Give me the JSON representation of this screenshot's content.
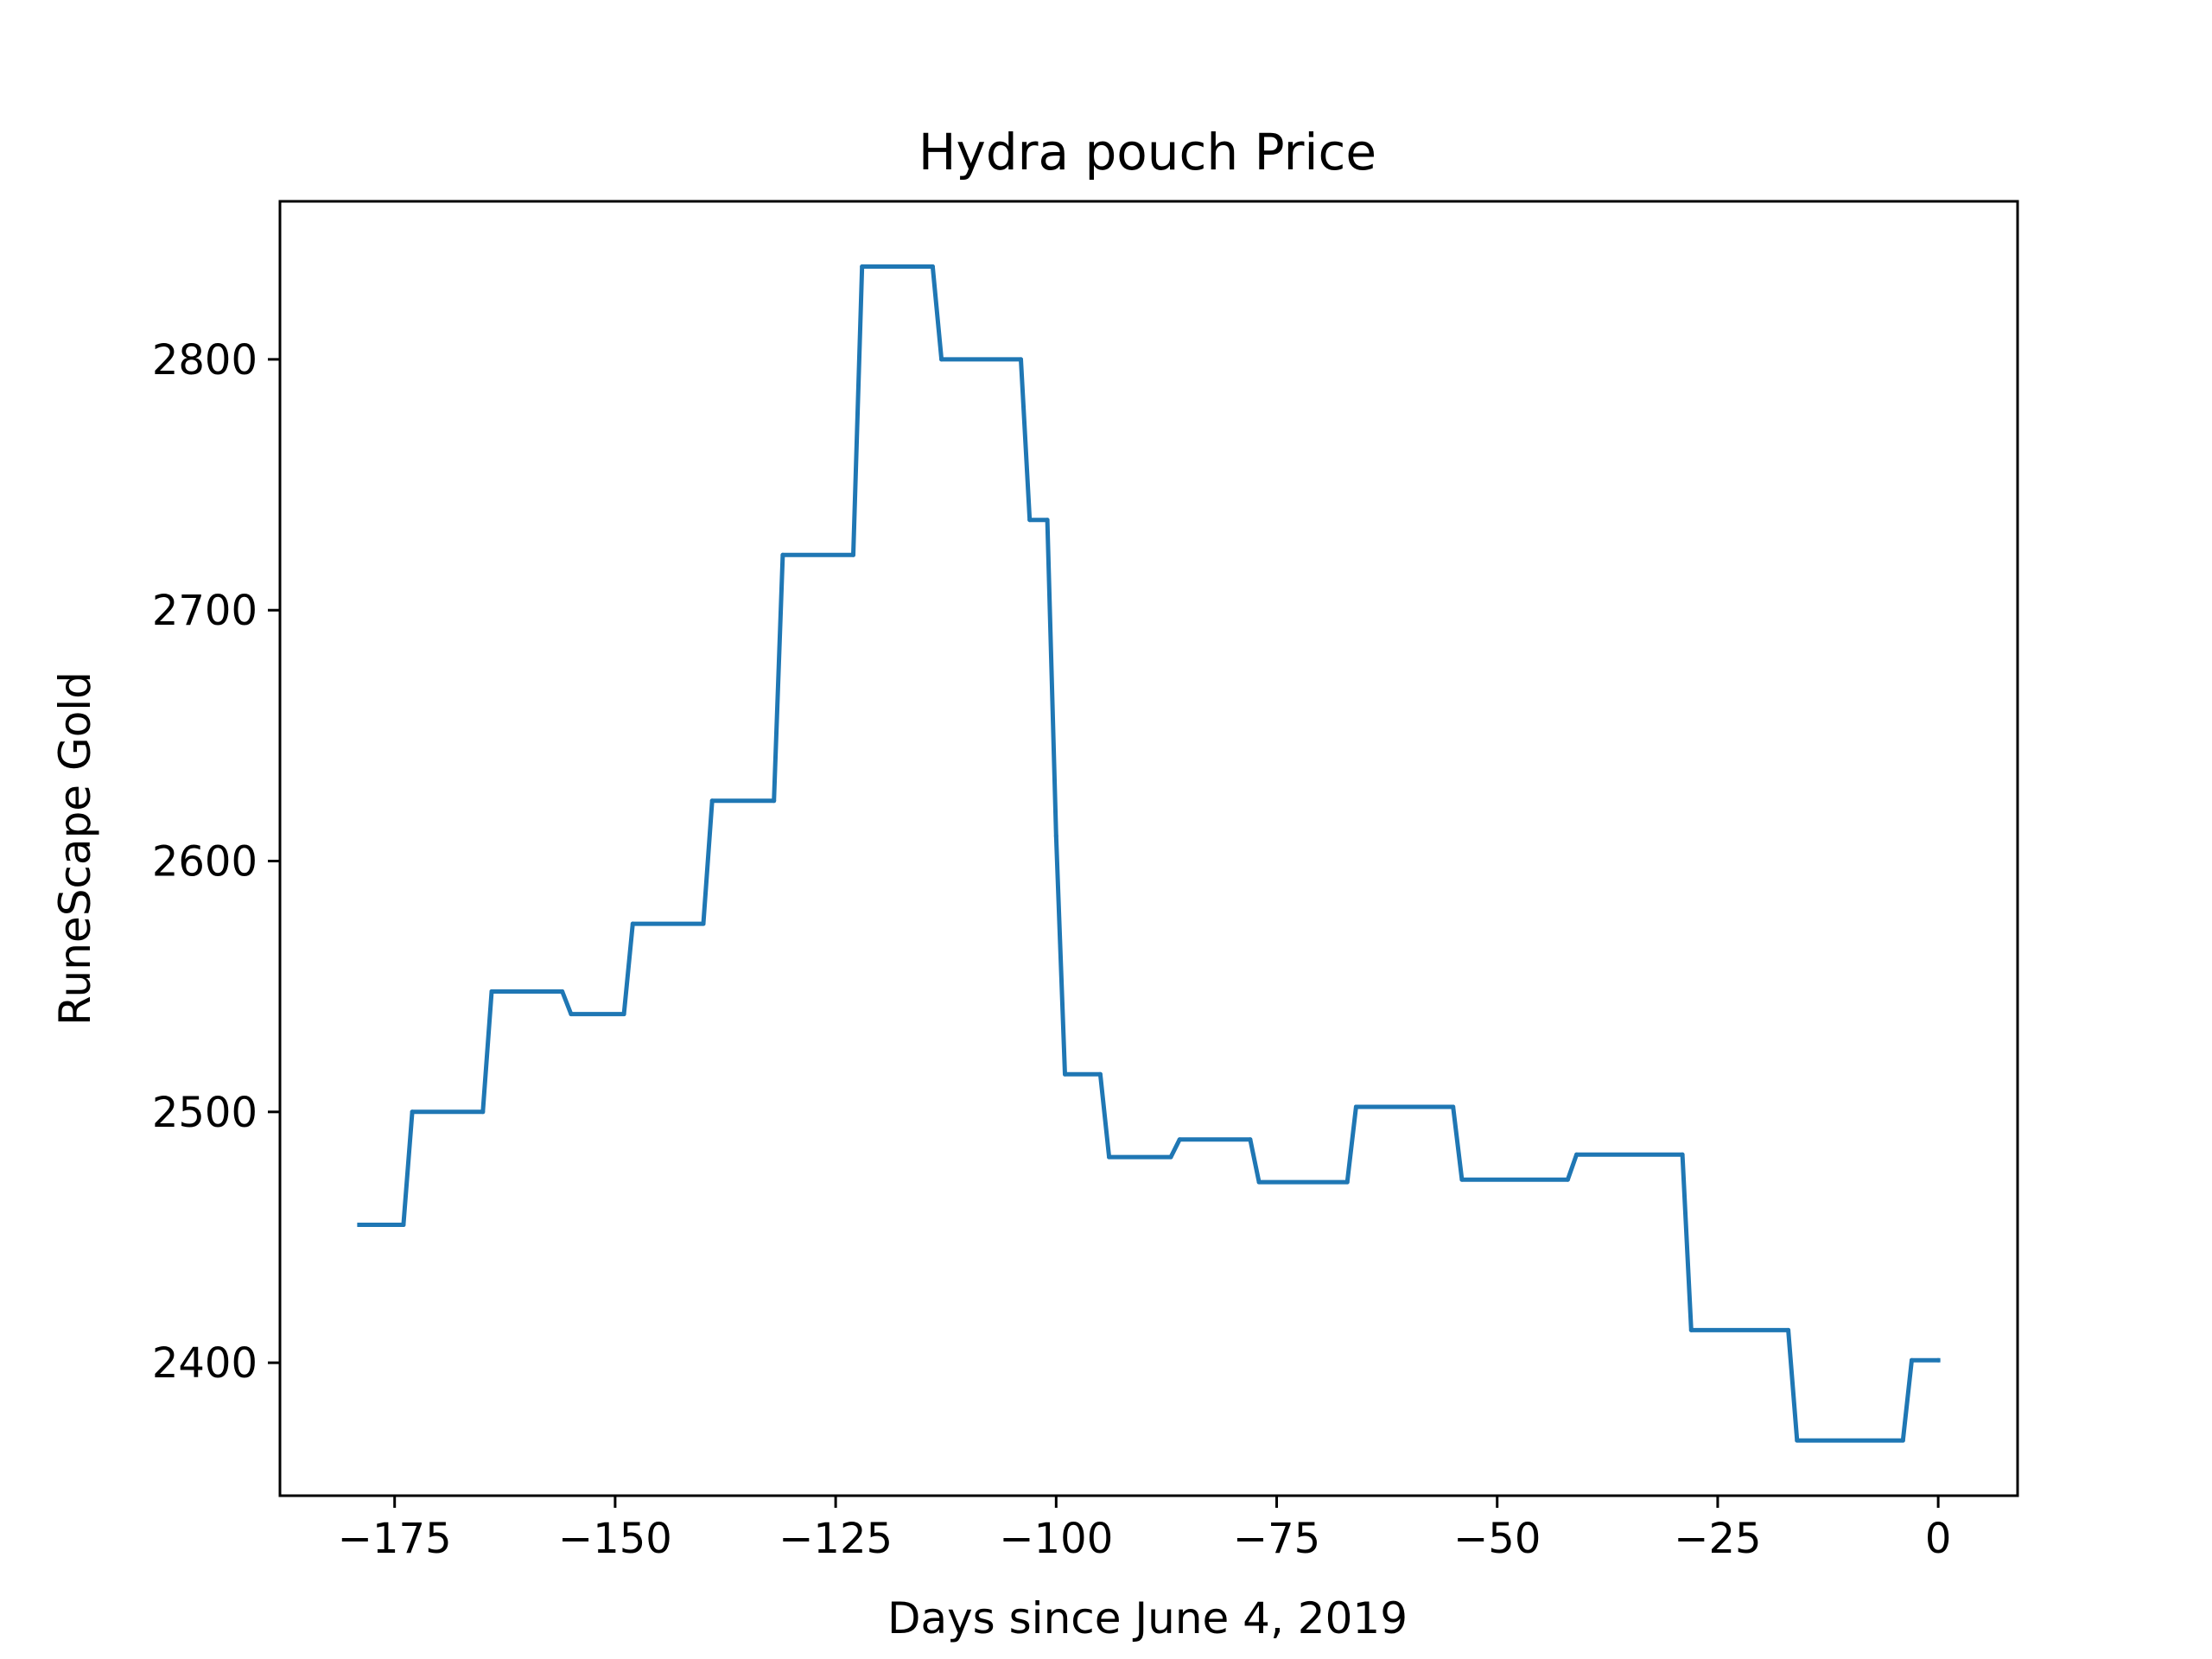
{
  "chart_data": {
    "type": "line",
    "title": "Hydra pouch Price",
    "xlabel": "Days since June 4, 2019",
    "ylabel": "RuneScape Gold",
    "xlim": [
      -188,
      9
    ],
    "ylim": [
      2347,
      2863
    ],
    "x_ticks": [
      -175,
      -150,
      -125,
      -100,
      -75,
      -50,
      -25,
      0
    ],
    "x_tick_labels": [
      "−175",
      "−150",
      "−125",
      "−100",
      "−75",
      "−50",
      "−25",
      "0"
    ],
    "y_ticks": [
      2400,
      2500,
      2600,
      2700,
      2800
    ],
    "y_tick_labels": [
      "2400",
      "2500",
      "2600",
      "2700",
      "2800"
    ],
    "grid": false,
    "legend": "none",
    "series": [
      {
        "color": "#1f77b4",
        "points": [
          [
            -179,
            2455
          ],
          [
            -174,
            2455
          ],
          [
            -173,
            2500
          ],
          [
            -165,
            2500
          ],
          [
            -164,
            2548
          ],
          [
            -156,
            2548
          ],
          [
            -155,
            2539
          ],
          [
            -149,
            2539
          ],
          [
            -148,
            2575
          ],
          [
            -140,
            2575
          ],
          [
            -139,
            2624
          ],
          [
            -132,
            2624
          ],
          [
            -131,
            2722
          ],
          [
            -123,
            2722
          ],
          [
            -122,
            2837
          ],
          [
            -114,
            2837
          ],
          [
            -113,
            2800
          ],
          [
            -104,
            2800
          ],
          [
            -103,
            2736
          ],
          [
            -101,
            2736
          ],
          [
            -100,
            2610
          ],
          [
            -99,
            2515
          ],
          [
            -95,
            2515
          ],
          [
            -94,
            2482
          ],
          [
            -87,
            2482
          ],
          [
            -86,
            2489
          ],
          [
            -78,
            2489
          ],
          [
            -77,
            2472
          ],
          [
            -67,
            2472
          ],
          [
            -66,
            2502
          ],
          [
            -55,
            2502
          ],
          [
            -54,
            2473
          ],
          [
            -42,
            2473
          ],
          [
            -41,
            2483
          ],
          [
            -29,
            2483
          ],
          [
            -28,
            2413
          ],
          [
            -17,
            2413
          ],
          [
            -16,
            2369
          ],
          [
            -4,
            2369
          ],
          [
            -3,
            2401
          ],
          [
            0,
            2401
          ]
        ]
      }
    ]
  }
}
